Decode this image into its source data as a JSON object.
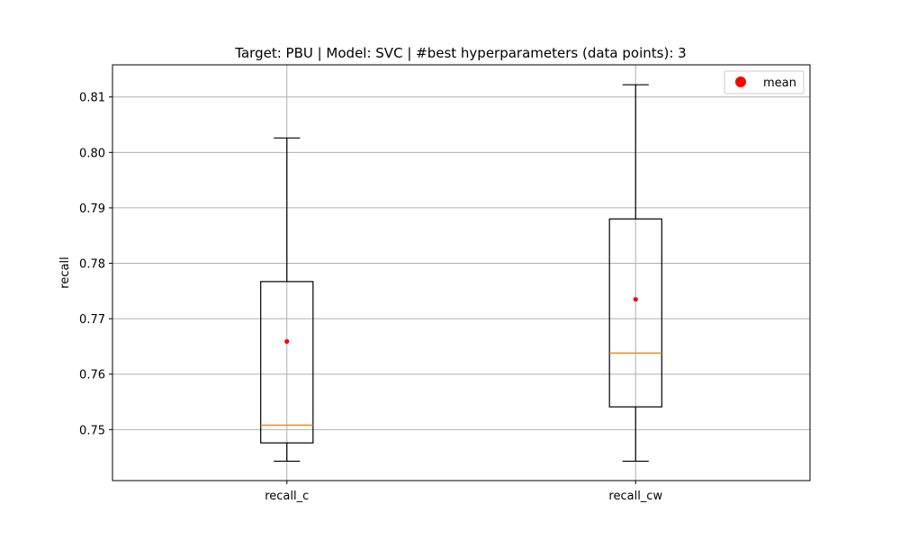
{
  "chart_data": {
    "type": "box",
    "title": "Target: PBU | Model: SVC | #best hyperparameters (data points): 3",
    "xlabel": "",
    "ylabel": "recall",
    "ylim": [
      0.7408,
      0.8158
    ],
    "yticks": [
      "0.75",
      "0.76",
      "0.77",
      "0.78",
      "0.79",
      "0.80",
      "0.81"
    ],
    "grid": true,
    "legend": {
      "position": "top-right",
      "entries": [
        {
          "label": "mean",
          "marker": "circle",
          "color": "#ff0000"
        }
      ]
    },
    "categories": [
      "recall_c",
      "recall_cw"
    ],
    "boxes": [
      {
        "category": "recall_c",
        "whisker_low": 0.7443,
        "q1": 0.7476,
        "median": 0.7508,
        "q3": 0.7767,
        "whisker_high": 0.8026,
        "mean": 0.7659
      },
      {
        "category": "recall_cw",
        "whisker_low": 0.7443,
        "q1": 0.7541,
        "median": 0.7638,
        "q3": 0.788,
        "whisker_high": 0.8122,
        "mean": 0.7735
      }
    ],
    "colors": {
      "box": "#000000",
      "median": "#ff7f0e",
      "mean": "#ff0000",
      "grid": "#b0b0b0"
    }
  }
}
